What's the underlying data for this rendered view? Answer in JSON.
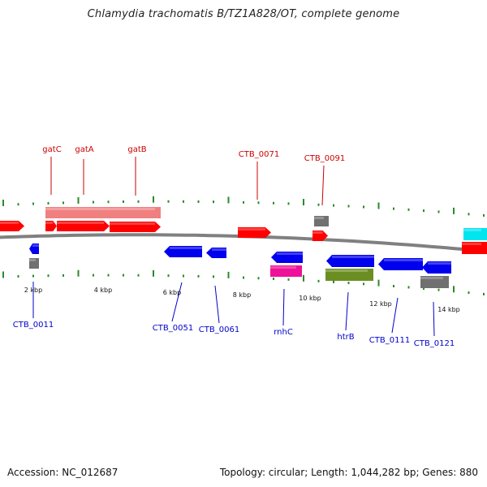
{
  "title": "Chlamydia trachomatis B/TZ1A828/OT, complete genome",
  "footer": {
    "accession": "Accession: NC_012687",
    "topology": "Topology: circular; Length: 1,044,282 bp; Genes: 880"
  },
  "colors": {
    "backbone": "#808080",
    "tick": "#2a8a2a",
    "label_forward": "#cc0000",
    "label_reverse": "#0000cc",
    "gene_red": "#ff0000",
    "gene_pink": "#f08080",
    "gene_blue": "#0000ee",
    "gene_gray": "#707070",
    "gene_magenta": "#ee1199",
    "gene_olive": "#6b8e23",
    "gene_cyan": "#00e5ee"
  },
  "scale_labels": [
    "2 kbp",
    "4 kbp",
    "6 kbp",
    "8 kbp",
    "10 kbp",
    "12 kbp",
    "14 kbp"
  ],
  "forward_labels": [
    "gatC",
    "gatA",
    "gatB",
    "CTB_0071",
    "CTB_0091"
  ],
  "reverse_labels": [
    "CTB_0011",
    "CTB_0051",
    "CTB_0061",
    "rnhC",
    "htrB",
    "CTB_0111",
    "CTB_0121"
  ]
}
